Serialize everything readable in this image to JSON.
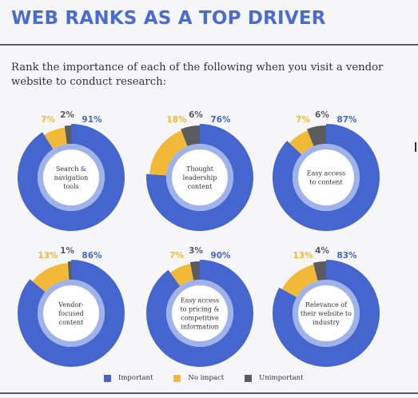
{
  "title": "WEB RANKS AS A TOP DRIVER",
  "subtitle": "Rank the importance of each of the following when you visit a vendor website to conduct research:",
  "colors": {
    "important": "#4566cf",
    "no_impact": "#f2b939",
    "unimportant": "#5b5c60",
    "title": "#4a6bd0"
  },
  "legend": [
    {
      "key": "important",
      "label": "Important"
    },
    {
      "key": "no_impact",
      "label": "No impact"
    },
    {
      "key": "unimportant",
      "label": "Unimportant"
    }
  ],
  "chart_data": [
    {
      "type": "pie",
      "label": [
        "Search &",
        "navigation",
        "tools"
      ],
      "values": {
        "important": 91,
        "no_impact": 7,
        "unimportant": 2
      },
      "labels": {
        "important": "91%",
        "no_impact": "7%",
        "unimportant": "2%"
      }
    },
    {
      "type": "pie",
      "label": [
        "Thought",
        "leadership",
        "content"
      ],
      "values": {
        "important": 76,
        "no_impact": 18,
        "unimportant": 6
      },
      "labels": {
        "important": "76%",
        "no_impact": "18%",
        "unimportant": "6%"
      }
    },
    {
      "type": "pie",
      "label": [
        "Easy access",
        "to content"
      ],
      "values": {
        "important": 87,
        "no_impact": 7,
        "unimportant": 6
      },
      "labels": {
        "important": "87%",
        "no_impact": "7%",
        "unimportant": "6%"
      }
    },
    {
      "type": "pie",
      "label": [
        "Vendor-",
        "focused",
        "content"
      ],
      "values": {
        "important": 86,
        "no_impact": 13,
        "unimportant": 1
      },
      "labels": {
        "important": "86%",
        "no_impact": "13%",
        "unimportant": "1%"
      }
    },
    {
      "type": "pie",
      "label": [
        "Easy access",
        "to pricing &",
        "competitive",
        "information"
      ],
      "values": {
        "important": 90,
        "no_impact": 7,
        "unimportant": 3
      },
      "labels": {
        "important": "90%",
        "no_impact": "7%",
        "unimportant": "3%"
      }
    },
    {
      "type": "pie",
      "label": [
        "Relevance of",
        "their website to",
        "industry"
      ],
      "values": {
        "important": 83,
        "no_impact": 13,
        "unimportant": 4
      },
      "labels": {
        "important": "83%",
        "no_impact": "13%",
        "unimportant": "4%"
      }
    }
  ]
}
